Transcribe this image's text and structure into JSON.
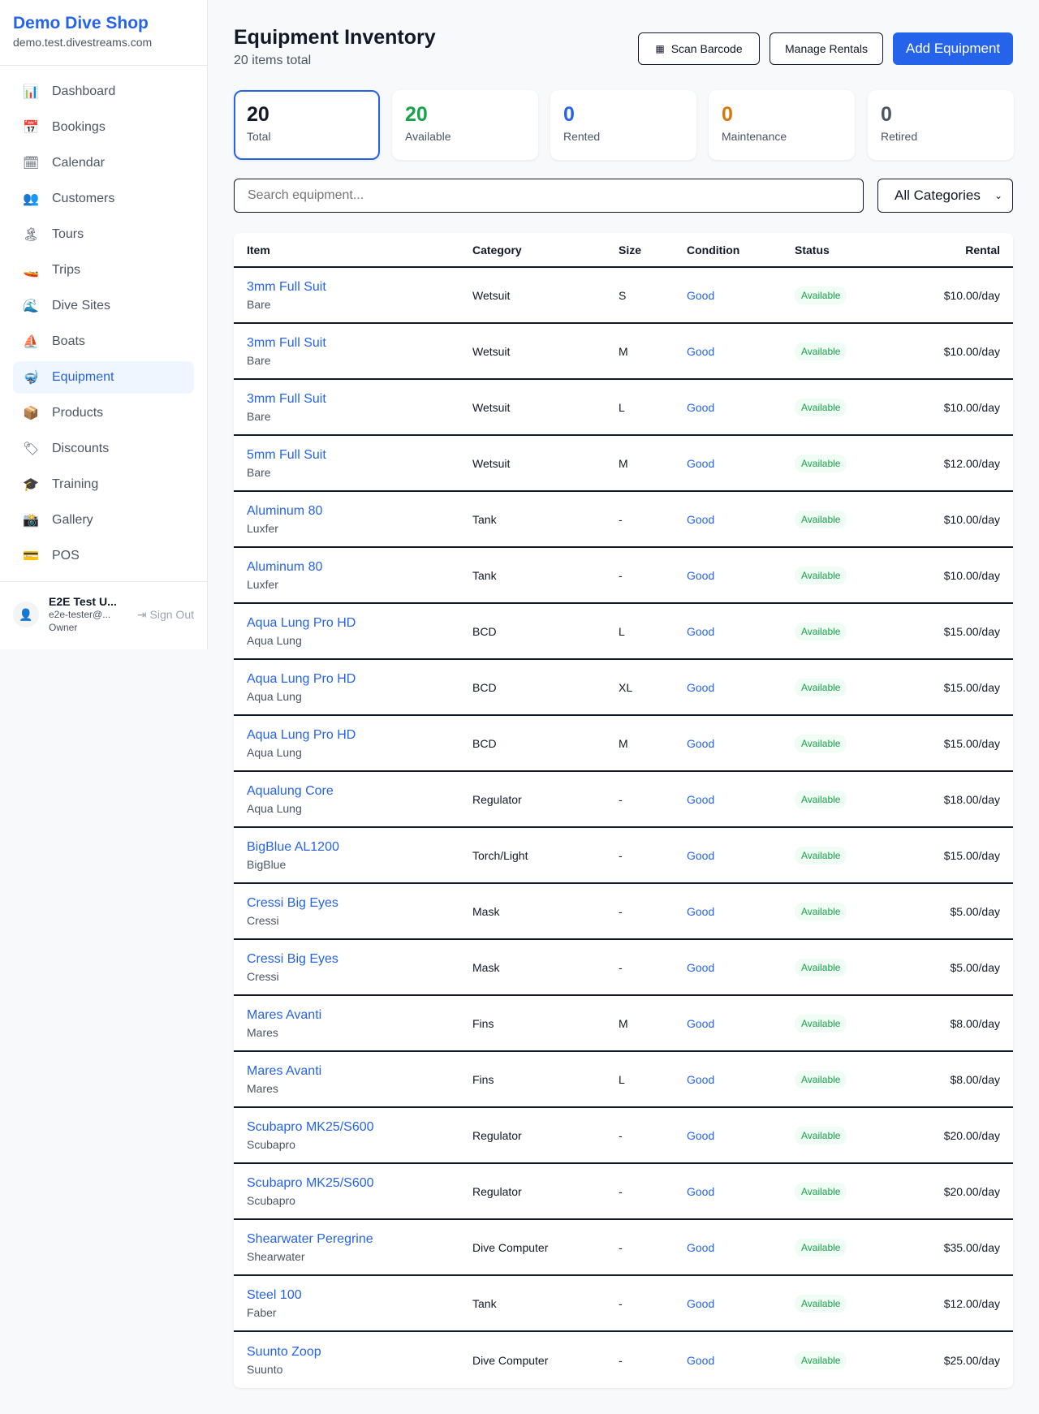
{
  "sidebar": {
    "title": "Demo Dive Shop",
    "subtitle": "demo.test.divestreams.com",
    "items": [
      {
        "label": "Dashboard",
        "icon": "📊"
      },
      {
        "label": "Bookings",
        "icon": "📅"
      },
      {
        "label": "Calendar",
        "icon": "🗓"
      },
      {
        "label": "Customers",
        "icon": "👥"
      },
      {
        "label": "Tours",
        "icon": "🏝"
      },
      {
        "label": "Trips",
        "icon": "🚤"
      },
      {
        "label": "Dive Sites",
        "icon": "🌊"
      },
      {
        "label": "Boats",
        "icon": "⛵"
      },
      {
        "label": "Equipment",
        "icon": "🤿",
        "active": true
      },
      {
        "label": "Products",
        "icon": "📦"
      },
      {
        "label": "Discounts",
        "icon": "🏷"
      },
      {
        "label": "Training",
        "icon": "🎓"
      },
      {
        "label": "Gallery",
        "icon": "📸"
      },
      {
        "label": "POS",
        "icon": "💳"
      }
    ],
    "user": {
      "name": "E2E Test U...",
      "email": "e2e-tester@...",
      "role": "Owner",
      "sign_out": "Sign Out"
    }
  },
  "header": {
    "title": "Equipment Inventory",
    "subtitle": "20 items total",
    "scan": "Scan Barcode",
    "manage": "Manage Rentals",
    "add": "Add Equipment"
  },
  "stats": [
    {
      "value": "20",
      "label": "Total",
      "color": "#111827"
    },
    {
      "value": "20",
      "label": "Available",
      "color": "#16a34a"
    },
    {
      "value": "0",
      "label": "Rented",
      "color": "#2563eb"
    },
    {
      "value": "0",
      "label": "Maintenance",
      "color": "#d97706"
    },
    {
      "value": "0",
      "label": "Retired",
      "color": "#4b5563"
    }
  ],
  "filters": {
    "search_placeholder": "Search equipment...",
    "category": "All Categories"
  },
  "table": {
    "headers": [
      "Item",
      "Category",
      "Size",
      "Condition",
      "Status",
      "Rental"
    ],
    "rows": [
      [
        "3mm Full Suit",
        "Bare",
        "Wetsuit",
        "S",
        "Good",
        "Available",
        "$10.00/day"
      ],
      [
        "3mm Full Suit",
        "Bare",
        "Wetsuit",
        "M",
        "Good",
        "Available",
        "$10.00/day"
      ],
      [
        "3mm Full Suit",
        "Bare",
        "Wetsuit",
        "L",
        "Good",
        "Available",
        "$10.00/day"
      ],
      [
        "5mm Full Suit",
        "Bare",
        "Wetsuit",
        "M",
        "Good",
        "Available",
        "$12.00/day"
      ],
      [
        "Aluminum 80",
        "Luxfer",
        "Tank",
        "-",
        "Good",
        "Available",
        "$10.00/day"
      ],
      [
        "Aluminum 80",
        "Luxfer",
        "Tank",
        "-",
        "Good",
        "Available",
        "$10.00/day"
      ],
      [
        "Aqua Lung Pro HD",
        "Aqua Lung",
        "BCD",
        "L",
        "Good",
        "Available",
        "$15.00/day"
      ],
      [
        "Aqua Lung Pro HD",
        "Aqua Lung",
        "BCD",
        "XL",
        "Good",
        "Available",
        "$15.00/day"
      ],
      [
        "Aqua Lung Pro HD",
        "Aqua Lung",
        "BCD",
        "M",
        "Good",
        "Available",
        "$15.00/day"
      ],
      [
        "Aqualung Core",
        "Aqua Lung",
        "Regulator",
        "-",
        "Good",
        "Available",
        "$18.00/day"
      ],
      [
        "BigBlue AL1200",
        "BigBlue",
        "Torch/Light",
        "-",
        "Good",
        "Available",
        "$15.00/day"
      ],
      [
        "Cressi Big Eyes",
        "Cressi",
        "Mask",
        "-",
        "Good",
        "Available",
        "$5.00/day"
      ],
      [
        "Cressi Big Eyes",
        "Cressi",
        "Mask",
        "-",
        "Good",
        "Available",
        "$5.00/day"
      ],
      [
        "Mares Avanti",
        "Mares",
        "Fins",
        "M",
        "Good",
        "Available",
        "$8.00/day"
      ],
      [
        "Mares Avanti",
        "Mares",
        "Fins",
        "L",
        "Good",
        "Available",
        "$8.00/day"
      ],
      [
        "Scubapro MK25/S600",
        "Scubapro",
        "Regulator",
        "-",
        "Good",
        "Available",
        "$20.00/day"
      ],
      [
        "Scubapro MK25/S600",
        "Scubapro",
        "Regulator",
        "-",
        "Good",
        "Available",
        "$20.00/day"
      ],
      [
        "Shearwater Peregrine",
        "Shearwater",
        "Dive Computer",
        "-",
        "Good",
        "Available",
        "$35.00/day"
      ],
      [
        "Steel 100",
        "Faber",
        "Tank",
        "-",
        "Good",
        "Available",
        "$12.00/day"
      ],
      [
        "Suunto Zoop",
        "Suunto",
        "Dive Computer",
        "-",
        "Good",
        "Available",
        "$25.00/day"
      ]
    ]
  }
}
